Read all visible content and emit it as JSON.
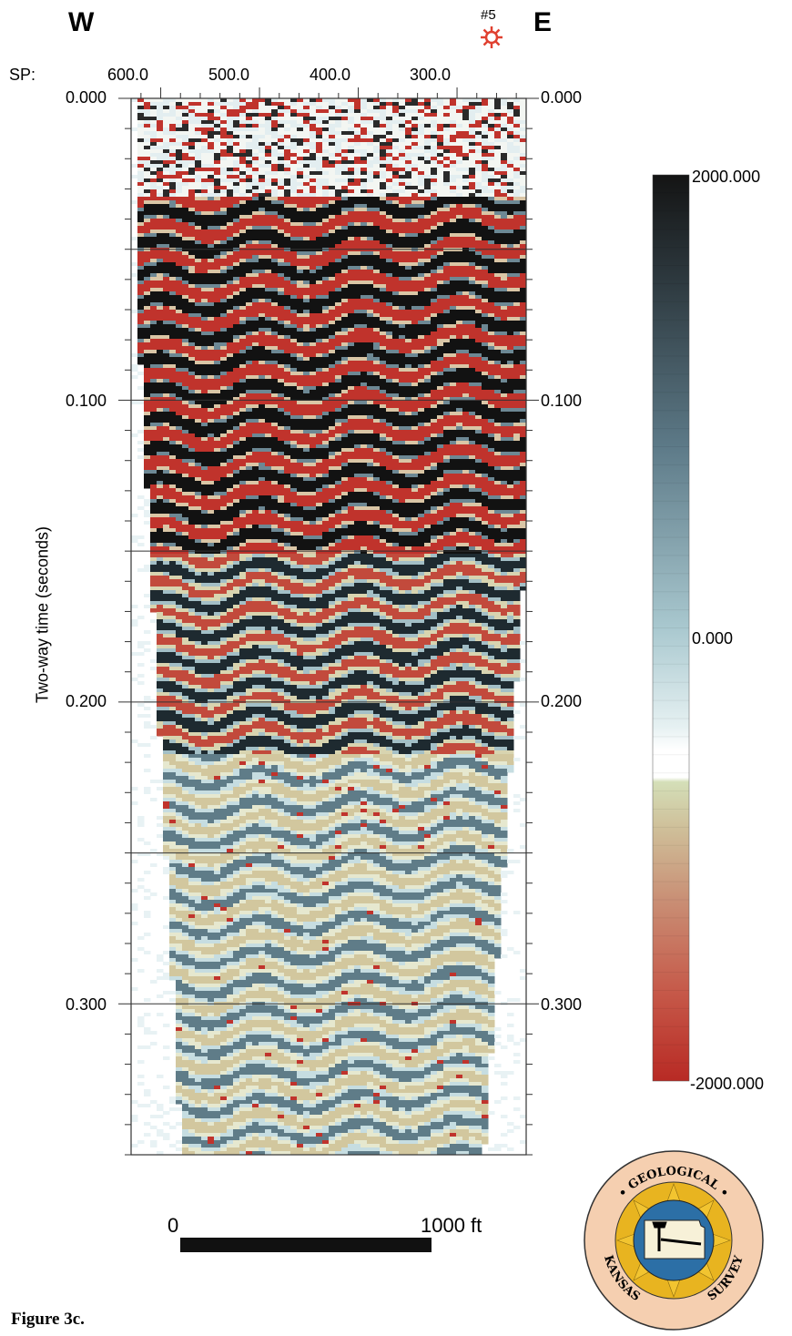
{
  "header": {
    "west": "W",
    "east": "E",
    "well_label": "#5",
    "sp_label": "SP:"
  },
  "figure_caption": "Figure 3c.",
  "scale_bar": {
    "start": "0",
    "end": "1000 ft"
  },
  "logo": {
    "name": "KANSAS GEOLOGICAL SURVEY"
  },
  "colors": {
    "positive": "#141414",
    "negative": "#c0332c",
    "zero": "#ffffff",
    "well_icon": "#e04030"
  },
  "chart_data": {
    "type": "heatmap",
    "title": "",
    "ylabel": "Two-way time (seconds)",
    "xlabel": "SP",
    "x_ticks": [
      "600.0",
      "500.0",
      "400.0",
      "300.0"
    ],
    "x_tick_values": [
      600,
      500,
      400,
      300
    ],
    "xlim": [
      630,
      230
    ],
    "y_ticks": [
      "0.000",
      "0.100",
      "0.200",
      "0.300"
    ],
    "y_tick_values": [
      0,
      0.1,
      0.2,
      0.3
    ],
    "ylim": [
      0,
      0.35
    ],
    "gridlines_y": [
      0.05,
      0.1,
      0.15,
      0.2,
      0.25,
      0.3
    ],
    "well_sp": 265,
    "colorbar": {
      "max_label": "2000.000",
      "zero_label": "0.000",
      "min_label": "-2000.000",
      "range": [
        -2000,
        2000
      ]
    }
  }
}
